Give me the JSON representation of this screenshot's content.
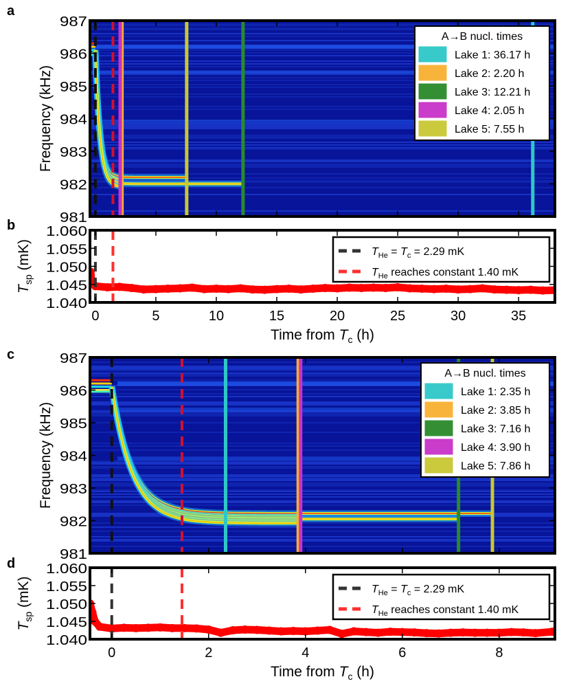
{
  "chart_data": [
    {
      "panel": "a",
      "type": "heatmap",
      "ylabel": "Frequency (kHz)",
      "ylim": [
        981,
        987
      ],
      "xlim": [
        -0.45,
        38
      ],
      "yticks": [
        "981",
        "982",
        "983",
        "984",
        "985",
        "986",
        "987"
      ],
      "colormap": "jet",
      "bands": [
        {
          "final_freq": 982.2,
          "end_time": 7.55
        },
        {
          "final_freq": 982.1,
          "end_time": 2.2
        },
        {
          "final_freq": 982.0,
          "end_time": 12.21
        },
        {
          "final_freq": 981.9,
          "end_time": 2.05
        }
      ],
      "markers": [
        {
          "time": 0,
          "color": "#111111",
          "style": "dashed"
        },
        {
          "time": 1.45,
          "color": "#d01030",
          "style": "dashed"
        }
      ],
      "legend": {
        "title": "A→B nucl. times",
        "placement": "top-right",
        "entries": [
          {
            "label": "Lake 1: 36.17 h",
            "time": 36.17,
            "color": "#2ec8c8"
          },
          {
            "label": "Lake 2: 2.20 h",
            "time": 2.2,
            "color": "#f8b030"
          },
          {
            "label": "Lake 3: 12.21 h",
            "time": 12.21,
            "color": "#2a8a2a"
          },
          {
            "label": "Lake 4: 2.05 h",
            "time": 2.05,
            "color": "#c832c8"
          },
          {
            "label": "Lake 5: 7.55 h",
            "time": 7.55,
            "color": "#c8c832"
          }
        ]
      }
    },
    {
      "panel": "b",
      "type": "scatter",
      "xlabel_parts": [
        "Time from ",
        "T",
        "c",
        " (h)"
      ],
      "ylabel_parts": [
        "T",
        "sp",
        " (mK)"
      ],
      "xlim": [
        -0.45,
        38
      ],
      "ylim": [
        1.04,
        1.06
      ],
      "xticks": [
        "0",
        "5",
        "10",
        "15",
        "20",
        "25",
        "30",
        "35"
      ],
      "xtick_values": [
        0,
        5,
        10,
        15,
        20,
        25,
        30,
        35
      ],
      "yticks": [
        "1.040",
        "1.045",
        "1.050",
        "1.055",
        "1.060"
      ],
      "color": "#ff0000",
      "points": [
        [
          -0.4,
          1.0485
        ],
        [
          -0.3,
          1.0455
        ],
        [
          0,
          1.0445
        ],
        [
          1,
          1.0442
        ],
        [
          2,
          1.0443
        ],
        [
          3,
          1.044
        ],
        [
          4,
          1.0436
        ],
        [
          5,
          1.0437
        ],
        [
          6,
          1.0438
        ],
        [
          7,
          1.0439
        ],
        [
          8,
          1.0441
        ],
        [
          9,
          1.0437
        ],
        [
          10,
          1.0438
        ],
        [
          11,
          1.0437
        ],
        [
          12,
          1.0439
        ],
        [
          13,
          1.0436
        ],
        [
          14,
          1.0435
        ],
        [
          15,
          1.0437
        ],
        [
          16,
          1.0438
        ],
        [
          17,
          1.0436
        ],
        [
          18,
          1.0438
        ],
        [
          19,
          1.044
        ],
        [
          20,
          1.0439
        ],
        [
          21,
          1.0441
        ],
        [
          22,
          1.044
        ],
        [
          23,
          1.0441
        ],
        [
          24,
          1.044
        ],
        [
          25,
          1.0442
        ],
        [
          26,
          1.0439
        ],
        [
          27,
          1.0438
        ],
        [
          28,
          1.0437
        ],
        [
          29,
          1.0438
        ],
        [
          30,
          1.0436
        ],
        [
          31,
          1.0437
        ],
        [
          32,
          1.0439
        ],
        [
          33,
          1.0436
        ],
        [
          34,
          1.0435
        ],
        [
          35,
          1.0434
        ],
        [
          36,
          1.0435
        ],
        [
          37,
          1.0433
        ],
        [
          38,
          1.0434
        ]
      ],
      "markers": [
        {
          "time": 0,
          "color": "#333333",
          "style": "dashed"
        },
        {
          "time": 1.45,
          "color": "#ff3030",
          "style": "dashed"
        }
      ],
      "legend": {
        "placement": "top-right",
        "entries": [
          {
            "parts": [
              "T",
              "He",
              " = ",
              "T",
              "c",
              " = 2.29 mK"
            ],
            "color": "#333333"
          },
          {
            "parts": [
              "T",
              "He",
              " reaches constant 1.40 mK",
              "",
              "",
              " "
            ],
            "color": "#ff3030"
          }
        ]
      }
    },
    {
      "panel": "c",
      "type": "heatmap",
      "ylabel": "Frequency (kHz)",
      "ylim": [
        981,
        987
      ],
      "xlim": [
        -0.45,
        9.15
      ],
      "yticks": [
        "981",
        "982",
        "983",
        "984",
        "985",
        "986",
        "987"
      ],
      "colormap": "jet",
      "bands": [
        {
          "final_freq": 982.22,
          "end_time": 7.86
        },
        {
          "final_freq": 982.12,
          "end_time": 3.85
        },
        {
          "final_freq": 982.05,
          "end_time": 7.16
        },
        {
          "final_freq": 981.98,
          "end_time": 3.9
        },
        {
          "final_freq": 981.92,
          "end_time": 3.85
        }
      ],
      "markers": [
        {
          "time": 0,
          "color": "#111111",
          "style": "dashed"
        },
        {
          "time": 1.45,
          "color": "#d01030",
          "style": "dashed"
        }
      ],
      "legend": {
        "title": "A→B nucl. times",
        "placement": "top-right",
        "entries": [
          {
            "label": "Lake 1: 2.35 h",
            "time": 2.35,
            "color": "#2ec8c8"
          },
          {
            "label": "Lake 2: 3.85 h",
            "time": 3.85,
            "color": "#f8b030"
          },
          {
            "label": "Lake 3: 7.16 h",
            "time": 7.16,
            "color": "#2a8a2a"
          },
          {
            "label": "Lake 4: 3.90 h",
            "time": 3.9,
            "color": "#c832c8"
          },
          {
            "label": "Lake 5: 7.86 h",
            "time": 7.86,
            "color": "#c8c832"
          }
        ]
      }
    },
    {
      "panel": "d",
      "type": "scatter",
      "xlabel_parts": [
        "Time from ",
        "T",
        "c",
        " (h)"
      ],
      "ylabel_parts": [
        "T",
        "sp",
        " (mK)"
      ],
      "xlim": [
        -0.45,
        9.15
      ],
      "ylim": [
        1.04,
        1.06
      ],
      "xticks": [
        "0",
        "2",
        "4",
        "6",
        "8"
      ],
      "xtick_values": [
        0,
        2,
        4,
        6,
        8
      ],
      "yticks": [
        "1.040",
        "1.045",
        "1.050",
        "1.055",
        "1.060"
      ],
      "color": "#ff0000",
      "points": [
        [
          -0.45,
          1.05
        ],
        [
          -0.4,
          1.0475
        ],
        [
          -0.35,
          1.045
        ],
        [
          -0.25,
          1.0435
        ],
        [
          0,
          1.043
        ],
        [
          0.25,
          1.0432
        ],
        [
          0.5,
          1.0431
        ],
        [
          0.75,
          1.0432
        ],
        [
          1,
          1.0433
        ],
        [
          1.25,
          1.0431
        ],
        [
          1.5,
          1.0431
        ],
        [
          1.75,
          1.043
        ],
        [
          2,
          1.0427
        ],
        [
          2.25,
          1.0418
        ],
        [
          2.5,
          1.0425
        ],
        [
          2.75,
          1.0427
        ],
        [
          3,
          1.0426
        ],
        [
          3.25,
          1.0424
        ],
        [
          3.5,
          1.0422
        ],
        [
          3.75,
          1.0423
        ],
        [
          4,
          1.0422
        ],
        [
          4.25,
          1.0424
        ],
        [
          4.5,
          1.0426
        ],
        [
          4.75,
          1.0415
        ],
        [
          5,
          1.0422
        ],
        [
          5.25,
          1.042
        ],
        [
          5.5,
          1.0418
        ],
        [
          5.75,
          1.0421
        ],
        [
          6,
          1.042
        ],
        [
          6.25,
          1.0419
        ],
        [
          6.5,
          1.0417
        ],
        [
          6.75,
          1.0416
        ],
        [
          7,
          1.0418
        ],
        [
          7.25,
          1.0419
        ],
        [
          7.5,
          1.0418
        ],
        [
          7.75,
          1.0418
        ],
        [
          8,
          1.0418
        ],
        [
          8.25,
          1.042
        ],
        [
          8.5,
          1.0419
        ],
        [
          8.75,
          1.0417
        ],
        [
          9.1,
          1.0421
        ]
      ],
      "markers": [
        {
          "time": 0,
          "color": "#333333",
          "style": "dashed"
        },
        {
          "time": 1.45,
          "color": "#ff3030",
          "style": "dashed"
        }
      ],
      "legend": {
        "placement": "top-right",
        "entries": [
          {
            "parts": [
              "T",
              "He",
              " = ",
              "T",
              "c",
              " = 2.29 mK"
            ],
            "color": "#333333"
          },
          {
            "parts": [
              "T",
              "He",
              " reaches constant 1.40 mK",
              "",
              "",
              " "
            ],
            "color": "#ff3030"
          }
        ]
      }
    }
  ]
}
